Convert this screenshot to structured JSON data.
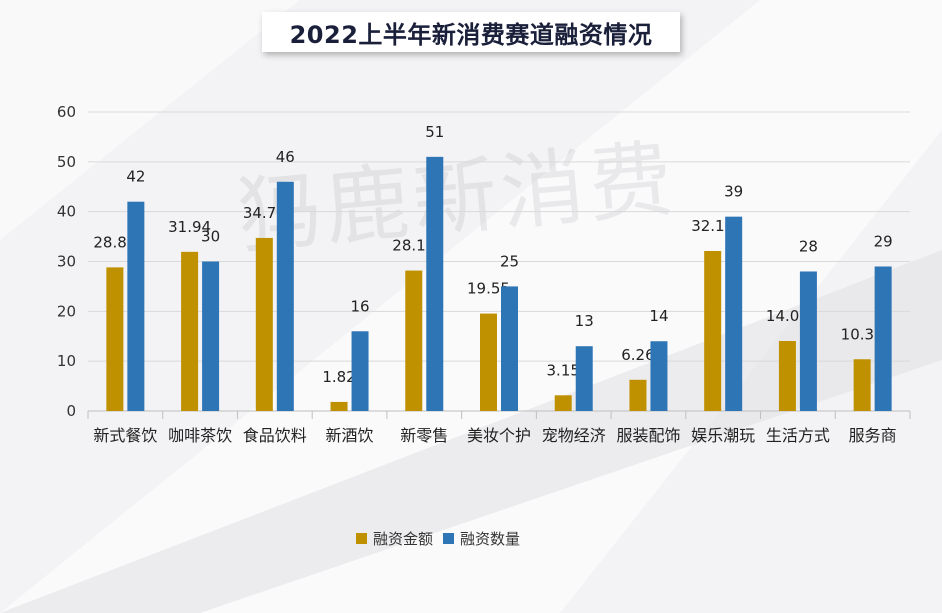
{
  "chart_data": {
    "type": "bar",
    "title": "2022上半年新消费赛道融资情况",
    "watermark": "犸鹿新消费",
    "categories": [
      "新式餐饮",
      "咖啡茶饮",
      "食品饮料",
      "新酒饮",
      "新零售",
      "美妆个护",
      "宠物经济",
      "服装配饰",
      "娱乐潮玩",
      "生活方式",
      "服务商"
    ],
    "series": [
      {
        "name": "融资金额",
        "color": "#bf9000",
        "values": [
          28.82,
          31.94,
          34.73,
          1.82,
          28.18,
          19.55,
          3.15,
          6.26,
          32.11,
          14.05,
          10.38
        ]
      },
      {
        "name": "融资数量",
        "color": "#2e75b6",
        "values": [
          42,
          30,
          46,
          16,
          51,
          25,
          13,
          14,
          39,
          28,
          29
        ]
      }
    ],
    "ylim": [
      0,
      60
    ],
    "yticks": [
      0,
      10,
      20,
      30,
      40,
      50,
      60
    ],
    "grid": true,
    "legend_position": "bottom"
  }
}
